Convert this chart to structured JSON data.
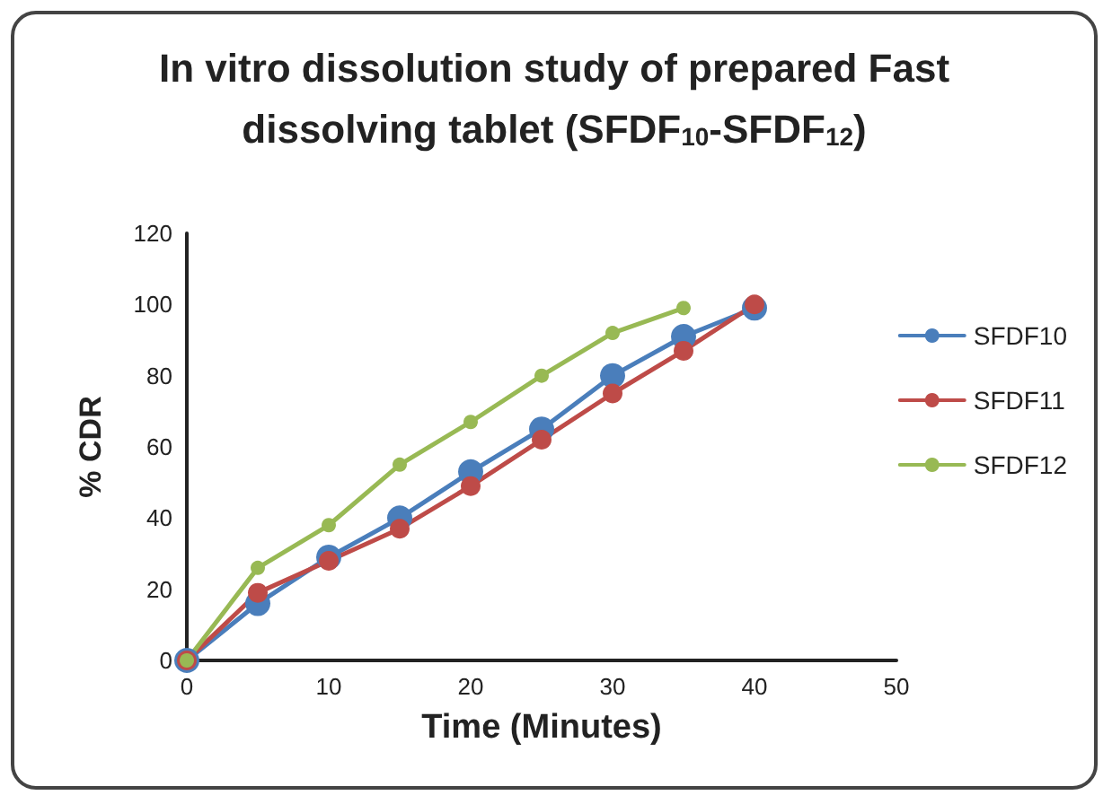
{
  "chart_data": {
    "type": "line",
    "title": "In vitro dissolution study of prepared Fast dissolving tablet (SFDF$_{10}$-SFDF$_{12}$)",
    "xlabel": "Time (Minutes)",
    "ylabel": "% CDR",
    "x": [
      0,
      5,
      10,
      15,
      20,
      25,
      30,
      35,
      40
    ],
    "series": [
      {
        "name": "SFDF10",
        "color": "#4a7ebb",
        "values": [
          0,
          16,
          29,
          40,
          53,
          65,
          80,
          91,
          99
        ]
      },
      {
        "name": "SFDF11",
        "color": "#be4b48",
        "values": [
          0,
          19,
          28,
          37,
          49,
          62,
          75,
          87,
          100
        ]
      },
      {
        "name": "SFDF12",
        "color": "#98b954",
        "x": [
          0,
          5,
          10,
          15,
          20,
          25,
          30,
          35
        ],
        "values": [
          0,
          26,
          38,
          55,
          67,
          80,
          92,
          99
        ]
      }
    ],
    "xlim": [
      0,
      50
    ],
    "xticks": [
      0,
      10,
      20,
      30,
      40,
      50
    ],
    "ylim": [
      0,
      120
    ],
    "yticks": [
      0,
      20,
      40,
      60,
      80,
      100,
      120
    ],
    "grid": false,
    "legend": "right",
    "marker": "circle",
    "line_style": "solid"
  }
}
